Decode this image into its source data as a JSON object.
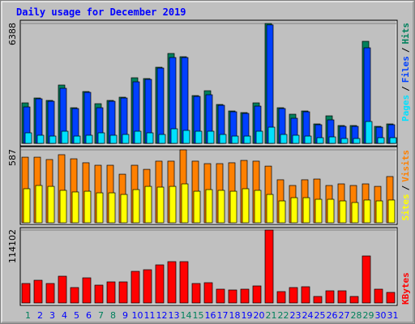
{
  "title": "Daily usage for December 2019",
  "legend_separator": "/",
  "chart_data": [
    {
      "type": "bar",
      "ylim": [
        0,
        6388
      ],
      "yticks": [
        6388
      ],
      "series": [
        {
          "name": "Hits",
          "color": "#00805c",
          "values": [
            2158,
            2417,
            2288,
            3108,
            1899,
            2762,
            2115,
            2288,
            2460,
            3496,
            3453,
            4057,
            4791,
            4618,
            2546,
            2805,
            2072,
            1726,
            1640,
            2158,
            6388,
            1899,
            1554,
            1726,
            1036,
            1467,
            950,
            950,
            5438,
            906,
            1036
          ]
        },
        {
          "name": "Files",
          "color": "#0040ff",
          "values": [
            1942,
            2374,
            2244,
            2935,
            1856,
            2719,
            1899,
            2244,
            2417,
            3280,
            3410,
            4014,
            4575,
            4575,
            2503,
            2590,
            2029,
            1683,
            1597,
            1985,
            6312,
            1856,
            1338,
            1683,
            993,
            1252,
            906,
            906,
            5093,
            863,
            993
          ]
        },
        {
          "name": "Pages",
          "color": "#00e0ff",
          "values": [
            561,
            432,
            388,
            647,
            388,
            432,
            561,
            432,
            475,
            647,
            561,
            475,
            777,
            691,
            647,
            647,
            475,
            388,
            388,
            647,
            863,
            475,
            432,
            388,
            302,
            345,
            259,
            259,
            1165,
            302,
            302
          ]
        }
      ]
    },
    {
      "type": "bar",
      "ylim": [
        0,
        587
      ],
      "yticks": [
        587
      ],
      "series": [
        {
          "name": "Visits",
          "color": "#ff8000",
          "values": [
            528,
            528,
            509,
            548,
            515,
            483,
            463,
            463,
            391,
            463,
            430,
            496,
            496,
            587,
            496,
            476,
            476,
            483,
            502,
            496,
            456,
            346,
            300,
            346,
            352,
            300,
            313,
            300,
            313,
            293,
            372
          ]
        },
        {
          "name": "Sites",
          "color": "#ffff00",
          "values": [
            274,
            300,
            293,
            261,
            248,
            254,
            241,
            241,
            228,
            267,
            293,
            287,
            293,
            313,
            254,
            267,
            261,
            254,
            274,
            261,
            228,
            176,
            202,
            202,
            189,
            189,
            176,
            163,
            183,
            176,
            183
          ]
        }
      ]
    },
    {
      "type": "bar",
      "ylim": [
        0,
        114102
      ],
      "yticks": [
        114102
      ],
      "categories": [
        "1",
        "2",
        "3",
        "4",
        "5",
        "6",
        "7",
        "8",
        "9",
        "10",
        "11",
        "12",
        "13",
        "14",
        "15",
        "16",
        "17",
        "18",
        "19",
        "20",
        "21",
        "22",
        "23",
        "24",
        "25",
        "26",
        "27",
        "28",
        "29",
        "30",
        "31"
      ],
      "category_colors": [
        "#00805c",
        "#0000ff",
        "#0000ff",
        "#0000ff",
        "#0000ff",
        "#0000ff",
        "#00805c",
        "#00805c",
        "#0000ff",
        "#0000ff",
        "#0000ff",
        "#0000ff",
        "#0000ff",
        "#00805c",
        "#00805c",
        "#0000ff",
        "#0000ff",
        "#0000ff",
        "#0000ff",
        "#0000ff",
        "#00805c",
        "#00805c",
        "#0000ff",
        "#0000ff",
        "#0000ff",
        "#0000ff",
        "#0000ff",
        "#00805c",
        "#00805c",
        "#0000ff",
        "#0000ff"
      ],
      "series": [
        {
          "name": "KBytes",
          "color": "#ff0000",
          "values": [
            30427,
            35498,
            30427,
            41837,
            24088,
            39301,
            27891,
            32962,
            32962,
            49444,
            51980,
            59586,
            64657,
            64657,
            30427,
            31695,
            21552,
            20285,
            21552,
            26623,
            114102,
            17749,
            24088,
            25356,
            10142,
            19017,
            19017,
            10142,
            73532,
            21552,
            16481
          ]
        }
      ]
    }
  ]
}
